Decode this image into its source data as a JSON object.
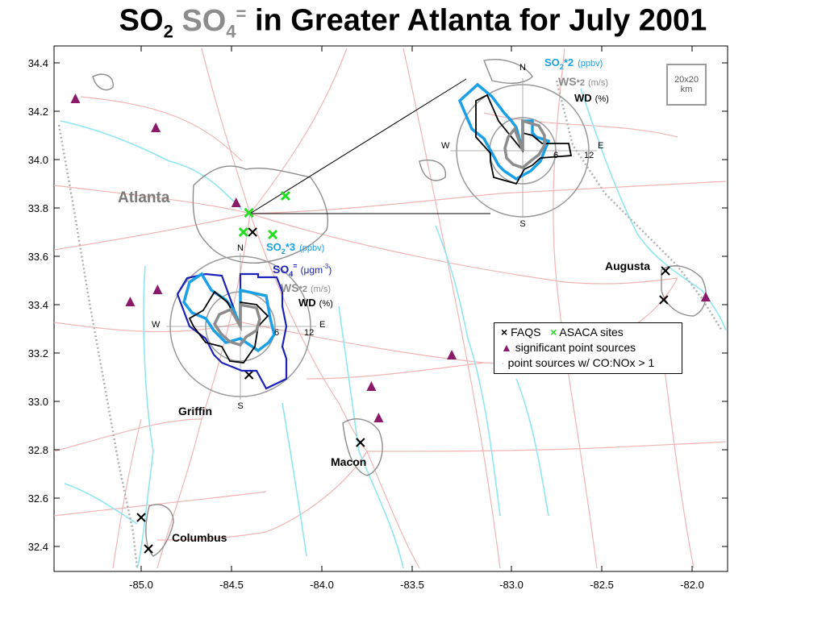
{
  "title": {
    "so2_main": "SO",
    "so2_sub": "2",
    "so4_main": "SO",
    "so4_sub": "4",
    "so4_sup": "=",
    "rest": "in Greater Atlanta for July 2001"
  },
  "axes": {
    "y_ticks": [
      "34.4",
      "34.2",
      "34.0",
      "33.8",
      "33.6",
      "33.4",
      "33.2",
      "33.0",
      "32.8",
      "32.6",
      "32.4"
    ],
    "x_ticks": [
      "-85.0",
      "-84.5",
      "-84.0",
      "-83.5",
      "-83.0",
      "-82.5",
      "-82.0"
    ]
  },
  "cities": {
    "atlanta": "Atlanta",
    "augusta": "Augusta",
    "griffin": "Griffin",
    "macon": "Macon",
    "columbus": "Columbus"
  },
  "scale_box": {
    "line1": "20x20",
    "line2": "km"
  },
  "rose_north": {
    "so2": "SO",
    "so2_sub": "2",
    "so2_factor": "*2",
    "so2_unit": "(ppbv)",
    "ws": "WS",
    "ws_factor": "*2",
    "ws_unit": "(m/s)",
    "wd": "WD",
    "wd_unit": "(%)",
    "n": "N",
    "s": "S",
    "e": "E",
    "w": "W",
    "r6": "6",
    "r12": "12"
  },
  "rose_south": {
    "so2": "SO",
    "so2_sub": "2",
    "so2_factor": "*3",
    "so2_unit": "(ppbv)",
    "so4": "SO",
    "so4_sub": "4",
    "so4_sup": "=",
    "so4_unit_a": "(μgm",
    "so4_unit_sup": "-3",
    "so4_unit_b": ")",
    "ws": "WS",
    "ws_factor": "*2",
    "ws_unit": "(m/s)",
    "wd": "WD",
    "wd_unit": "(%)",
    "n": "N",
    "s": "S",
    "e": "E",
    "w": "W",
    "r6": "6",
    "r12": "12"
  },
  "legend": {
    "faqs_symbol": "×",
    "faqs": "FAQS",
    "asaca_symbol": "×",
    "asaca": "ASACA  sites",
    "point_sources": "significant point sources",
    "conox": "point sources w/ CO:NOx > 1"
  },
  "colors": {
    "so2": "#1aa0e6",
    "so4": "#1a22b8",
    "ws": "#8c8c8c",
    "wd": "#000000",
    "roads": "#f2b4b4",
    "water": "#8fe6f2",
    "urban": "#8c8c8c",
    "asaca": "#22dd22",
    "point_source": "#8b1a6b"
  },
  "markers": {
    "faqs": [
      [
        -84.41,
        33.78
      ],
      [
        -84.39,
        33.7
      ],
      [
        -84.41,
        33.11
      ],
      [
        -83.8,
        32.83
      ],
      [
        -85.0,
        32.52
      ],
      [
        -84.96,
        32.39
      ],
      [
        -82.13,
        33.54
      ],
      [
        -82.14,
        33.42
      ]
    ],
    "asaca": [
      [
        -84.41,
        33.78
      ],
      [
        -84.21,
        33.85
      ],
      [
        -84.44,
        33.7
      ],
      [
        -84.28,
        33.69
      ]
    ],
    "point_sources": [
      [
        -85.36,
        34.25
      ],
      [
        -84.92,
        34.13
      ],
      [
        -84.48,
        33.82
      ],
      [
        -84.91,
        33.46
      ],
      [
        -85.06,
        33.41
      ],
      [
        -83.3,
        33.19
      ],
      [
        -83.74,
        33.06
      ],
      [
        -83.7,
        32.93
      ],
      [
        -81.91,
        33.43
      ]
    ]
  }
}
